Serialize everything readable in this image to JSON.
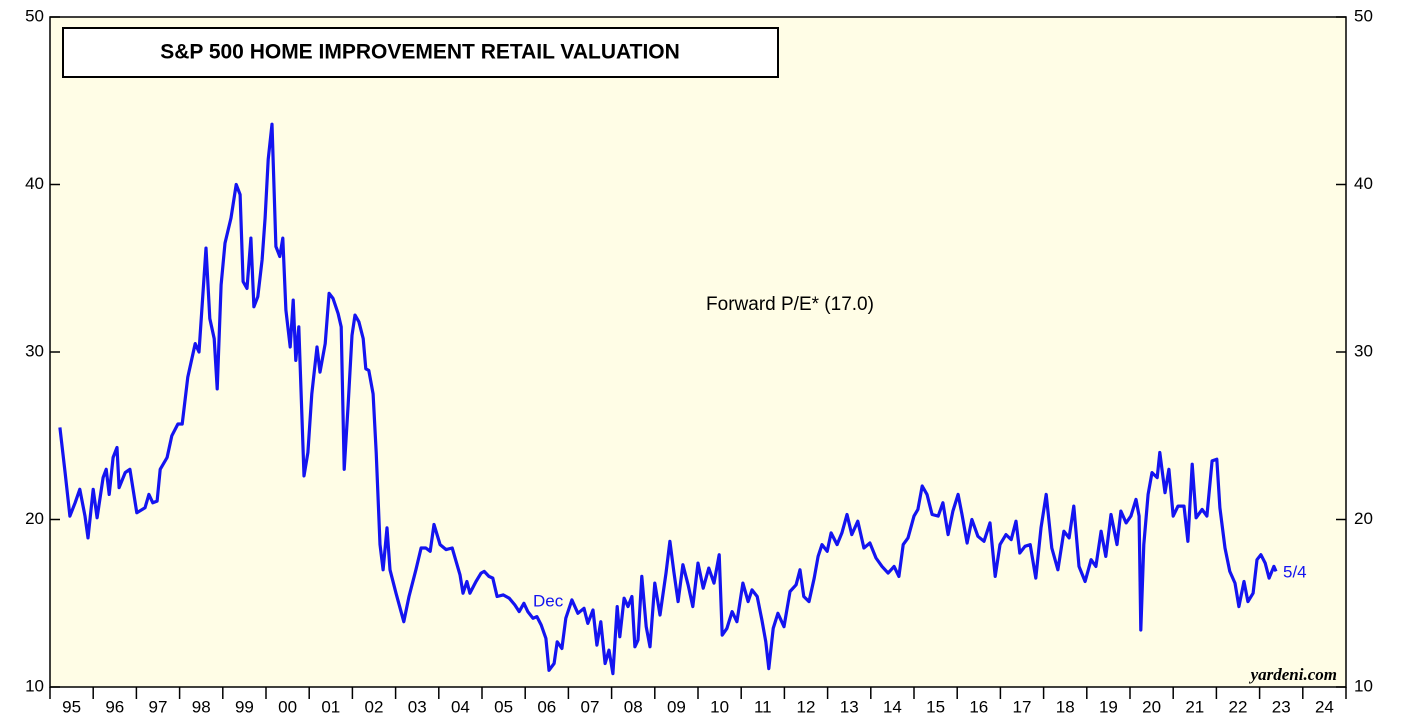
{
  "chart_data": {
    "type": "line",
    "title": "S&P 500 HOME IMPROVEMENT RETAIL VALUATION",
    "annotations": [
      "Forward P/E* (17.0)",
      "Dec",
      "5/4",
      "yardeni.com"
    ],
    "xlim": [
      1995,
      2025
    ],
    "ylim": [
      10,
      50
    ],
    "yticks": [
      10,
      20,
      30,
      40,
      50
    ],
    "xticks": [
      {
        "value": 1995.5,
        "label": "95"
      },
      {
        "value": 1996.5,
        "label": "96"
      },
      {
        "value": 1997.5,
        "label": "97"
      },
      {
        "value": 1998.5,
        "label": "98"
      },
      {
        "value": 1999.5,
        "label": "99"
      },
      {
        "value": 2000.5,
        "label": "00"
      },
      {
        "value": 2001.5,
        "label": "01"
      },
      {
        "value": 2002.5,
        "label": "02"
      },
      {
        "value": 2003.5,
        "label": "03"
      },
      {
        "value": 2004.5,
        "label": "04"
      },
      {
        "value": 2005.5,
        "label": "05"
      },
      {
        "value": 2006.5,
        "label": "06"
      },
      {
        "value": 2007.5,
        "label": "07"
      },
      {
        "value": 2008.5,
        "label": "08"
      },
      {
        "value": 2009.5,
        "label": "09"
      },
      {
        "value": 2010.5,
        "label": "10"
      },
      {
        "value": 2011.5,
        "label": "11"
      },
      {
        "value": 2012.5,
        "label": "12"
      },
      {
        "value": 2013.5,
        "label": "13"
      },
      {
        "value": 2014.5,
        "label": "14"
      },
      {
        "value": 2015.5,
        "label": "15"
      },
      {
        "value": 2016.5,
        "label": "16"
      },
      {
        "value": 2017.5,
        "label": "17"
      },
      {
        "value": 2018.5,
        "label": "18"
      },
      {
        "value": 2019.5,
        "label": "19"
      },
      {
        "value": 2020.5,
        "label": "20"
      },
      {
        "value": 2021.5,
        "label": "21"
      },
      {
        "value": 2022.5,
        "label": "22"
      },
      {
        "value": 2023.5,
        "label": "23"
      },
      {
        "value": 2024.5,
        "label": "24"
      }
    ],
    "background": "#fffde6",
    "series": [
      {
        "color": "#1414f0",
        "x": [
          1995.23,
          1995.35,
          1995.46,
          1995.58,
          1995.69,
          1995.81,
          1995.88,
          1996.0,
          1996.09,
          1996.23,
          1996.3,
          1996.37,
          1996.46,
          1996.55,
          1996.6,
          1996.74,
          1996.85,
          1997.01,
          1997.2,
          1997.29,
          1997.38,
          1997.48,
          1997.55,
          1997.71,
          1997.82,
          1997.96,
          1998.06,
          1998.19,
          1998.36,
          1998.45,
          1998.61,
          1998.7,
          1998.8,
          1998.87,
          1998.96,
          1999.05,
          1999.19,
          1999.31,
          1999.4,
          1999.47,
          1999.56,
          1999.65,
          1999.72,
          1999.81,
          1999.91,
          1999.98,
          2000.05,
          2000.14,
          2000.23,
          2000.32,
          2000.39,
          2000.46,
          2000.56,
          2000.63,
          2000.69,
          2000.76,
          2000.88,
          2000.97,
          2001.06,
          2001.18,
          2001.25,
          2001.37,
          2001.46,
          2001.55,
          2001.67,
          2001.74,
          2001.81,
          2001.9,
          2001.99,
          2002.06,
          2002.15,
          2002.25,
          2002.31,
          2002.38,
          2002.48,
          2002.55,
          2002.64,
          2002.71,
          2002.8,
          2002.87,
          2003.01,
          2003.19,
          2003.31,
          2003.47,
          2003.59,
          2003.7,
          2003.8,
          2003.89,
          2004.03,
          2004.17,
          2004.31,
          2004.4,
          2004.49,
          2004.56,
          2004.65,
          2004.72,
          2004.86,
          2004.98,
          2005.05,
          2005.16,
          2005.25,
          2005.35,
          2005.49,
          2005.63,
          2005.76,
          2005.86,
          2005.97,
          2006.06,
          2006.18,
          2006.27,
          2006.37,
          2006.48,
          2006.55,
          2006.67,
          2006.74,
          2006.85,
          2006.94,
          2007.08,
          2007.22,
          2007.36,
          2007.45,
          2007.57,
          2007.66,
          2007.75,
          2007.85,
          2007.94,
          2008.03,
          2008.13,
          2008.19,
          2008.29,
          2008.38,
          2008.47,
          2008.54,
          2008.61,
          2008.7,
          2008.8,
          2008.89,
          2009.0,
          2009.12,
          2009.26,
          2009.35,
          2009.44,
          2009.54,
          2009.65,
          2009.77,
          2009.88,
          2010.0,
          2010.12,
          2010.25,
          2010.37,
          2010.49,
          2010.56,
          2010.67,
          2010.79,
          2010.9,
          2011.04,
          2011.16,
          2011.25,
          2011.37,
          2011.48,
          2011.57,
          2011.64,
          2011.74,
          2011.85,
          2011.99,
          2012.13,
          2012.27,
          2012.36,
          2012.45,
          2012.57,
          2012.69,
          2012.78,
          2012.87,
          2012.99,
          2013.08,
          2013.22,
          2013.33,
          2013.45,
          2013.56,
          2013.7,
          2013.84,
          2013.98,
          2014.12,
          2014.26,
          2014.4,
          2014.54,
          2014.65,
          2014.75,
          2014.86,
          2015.0,
          2015.09,
          2015.19,
          2015.3,
          2015.42,
          2015.56,
          2015.67,
          2015.79,
          2015.9,
          2016.02,
          2016.11,
          2016.23,
          2016.34,
          2016.48,
          2016.62,
          2016.76,
          2016.88,
          2016.99,
          2017.13,
          2017.25,
          2017.36,
          2017.45,
          2017.57,
          2017.69,
          2017.82,
          2017.94,
          2018.06,
          2018.19,
          2018.33,
          2018.47,
          2018.59,
          2018.7,
          2018.82,
          2018.96,
          2019.1,
          2019.21,
          2019.33,
          2019.44,
          2019.56,
          2019.7,
          2019.79,
          2019.91,
          2020.02,
          2020.14,
          2020.21,
          2020.25,
          2020.32,
          2020.42,
          2020.51,
          2020.63,
          2020.69,
          2020.81,
          2020.9,
          2021.0,
          2021.11,
          2021.25,
          2021.34,
          2021.44,
          2021.53,
          2021.67,
          2021.78,
          2021.9,
          2022.01,
          2022.08,
          2022.2,
          2022.31,
          2022.43,
          2022.52,
          2022.64,
          2022.73,
          2022.85,
          2022.94,
          2023.03,
          2023.13,
          2023.22,
          2023.33,
          2023.38
        ],
        "values": [
          25.5,
          22.8,
          20.2,
          21,
          21.8,
          20.2,
          18.9,
          21.8,
          20.1,
          22.5,
          23,
          21.5,
          23.7,
          24.3,
          21.9,
          22.8,
          23,
          20.4,
          20.7,
          21.5,
          21,
          21.1,
          23,
          23.7,
          25,
          25.7,
          25.7,
          28.5,
          30.5,
          30,
          36.2,
          32,
          30.8,
          27.8,
          34,
          36.5,
          38,
          40,
          39.4,
          34.2,
          33.8,
          36.8,
          32.7,
          33.3,
          35.5,
          38,
          41.5,
          43.6,
          36.3,
          35.7,
          36.8,
          32.5,
          30.3,
          33.1,
          29.5,
          31.5,
          22.6,
          24,
          27.5,
          30.3,
          28.8,
          30.5,
          33.5,
          33.2,
          32.3,
          31.5,
          23,
          26.8,
          31,
          32.2,
          31.8,
          30.8,
          29,
          28.9,
          27.5,
          24,
          18.5,
          17,
          19.5,
          17,
          15.6,
          13.9,
          15.4,
          17,
          18.3,
          18.3,
          18.1,
          19.7,
          18.5,
          18.2,
          18.3,
          17.5,
          16.7,
          15.6,
          16.3,
          15.6,
          16.3,
          16.8,
          16.9,
          16.6,
          16.5,
          15.4,
          15.5,
          15.3,
          14.9,
          14.5,
          15,
          14.5,
          14.1,
          14.2,
          13.7,
          12.9,
          11,
          11.4,
          12.7,
          12.3,
          14.1,
          15.2,
          14.4,
          14.7,
          13.8,
          14.6,
          12.5,
          13.9,
          11.4,
          12.2,
          10.8,
          14.8,
          13,
          15.3,
          14.8,
          15.4,
          12.4,
          12.8,
          16.6,
          13.6,
          12.4,
          16.2,
          14.3,
          16.8,
          18.7,
          16.9,
          15.1,
          17.3,
          16.1,
          14.8,
          17.4,
          15.9,
          17.1,
          16.2,
          17.9,
          13.1,
          13.5,
          14.5,
          13.9,
          16.2,
          15.1,
          15.8,
          15.4,
          14,
          12.7,
          11.1,
          13.5,
          14.4,
          13.6,
          15.7,
          16.1,
          17,
          15.4,
          15.1,
          16.5,
          17.8,
          18.5,
          18.1,
          19.2,
          18.5,
          19.2,
          20.3,
          19.1,
          19.9,
          18.3,
          18.6,
          17.7,
          17.2,
          16.8,
          17.2,
          16.6,
          18.5,
          18.9,
          20.2,
          20.6,
          22,
          21.5,
          20.3,
          20.2,
          21,
          19.1,
          20.5,
          21.5,
          20.3,
          18.6,
          20,
          19,
          18.7,
          19.8,
          16.6,
          18.5,
          19.1,
          18.8,
          19.9,
          18,
          18.4,
          18.5,
          16.5,
          19.5,
          21.5,
          18.3,
          17,
          19.3,
          18.9,
          20.8,
          17.2,
          16.3,
          17.6,
          17.2,
          19.3,
          17.8,
          20.3,
          18.5,
          20.5,
          19.8,
          20.2,
          21.2,
          20.2,
          13.4,
          18.5,
          21.5,
          22.8,
          22.5,
          24,
          21.6,
          23,
          20.2,
          20.8,
          20.8,
          18.7,
          23.3,
          20.1,
          20.6,
          20.2,
          23.5,
          23.6,
          20.7,
          18.3,
          16.9,
          16.2,
          14.8,
          16.3,
          15.1,
          15.6,
          17.6,
          17.9,
          17.4,
          16.5,
          17.2,
          16.9
        ]
      }
    ]
  }
}
